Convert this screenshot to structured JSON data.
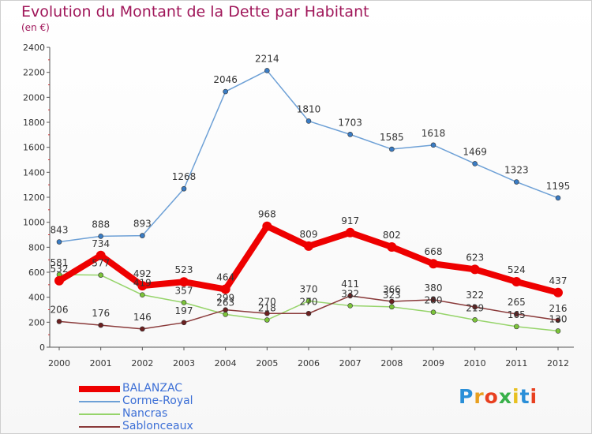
{
  "title": "Evolution du Montant de la Dette par Habitant",
  "subtitle": "(en €)",
  "brand": "Proxiti",
  "colors": {
    "title": "#a0175a",
    "axis": "#555555",
    "grid": "#dddddd",
    "legend_text": "#3c6fd6"
  },
  "chart_data": {
    "type": "line",
    "title": "Evolution du Montant de la Dette par Habitant",
    "subtitle": "(en €)",
    "x": [
      "2000",
      "2001",
      "2002",
      "2003",
      "2004",
      "2005",
      "2006",
      "2007",
      "2008",
      "2009",
      "2010",
      "2011",
      "2012"
    ],
    "ylim": [
      0,
      2400
    ],
    "yticks": [
      0,
      200,
      400,
      600,
      800,
      1000,
      1200,
      1400,
      1600,
      1800,
      2000,
      2200,
      2400
    ],
    "grid": false,
    "legend_position": "bottom-left",
    "series": [
      {
        "name": "BALANZAC",
        "color": "#ee0000",
        "marker_color": "#ee0000",
        "thick": true,
        "values": [
          532,
          734,
          492,
          523,
          464,
          968,
          809,
          917,
          802,
          668,
          623,
          524,
          437
        ],
        "labels": [
          "532",
          "734",
          "492",
          "523",
          "464",
          "968",
          "809",
          "917",
          "802",
          "668",
          "623",
          "524",
          "437"
        ]
      },
      {
        "name": "Corme-Royal",
        "color": "#6da0d6",
        "marker_color": "#3a7cc4",
        "thick": false,
        "values": [
          843,
          888,
          893,
          1268,
          2046,
          2214,
          1810,
          1703,
          1585,
          1618,
          1469,
          1323,
          1195
        ],
        "labels": [
          "843",
          "888",
          "893",
          "1268",
          "2046",
          "2214",
          "1810",
          "1703",
          "1585",
          "1618",
          "1469",
          "1323",
          "1195"
        ]
      },
      {
        "name": "Nancras",
        "color": "#96d46a",
        "marker_color": "#7cc43a",
        "thick": false,
        "values": [
          581,
          577,
          419,
          357,
          263,
          218,
          370,
          332,
          323,
          280,
          219,
          165,
          130
        ],
        "labels": [
          "581",
          "577",
          "419",
          "357",
          "263",
          "218",
          "370",
          "332",
          "323",
          "280",
          "219",
          "165",
          "130"
        ]
      },
      {
        "name": "Sablonceaux",
        "color": "#8a3a3a",
        "marker_color": "#6b2020",
        "thick": false,
        "values": [
          206,
          176,
          146,
          197,
          299,
          270,
          270,
          411,
          366,
          380,
          322,
          265,
          216
        ],
        "labels": [
          "206",
          "176",
          "146",
          "197",
          "299",
          "270",
          "270",
          "411",
          "366",
          "380",
          "322",
          "265",
          "216"
        ]
      }
    ]
  }
}
